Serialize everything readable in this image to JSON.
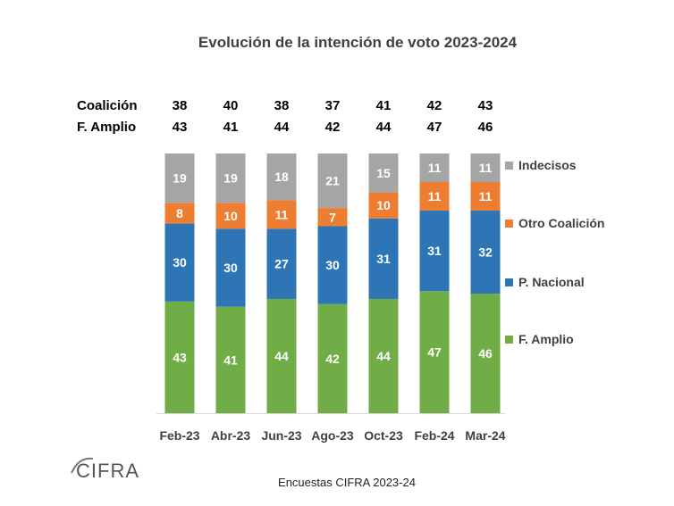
{
  "chart_data": {
    "type": "bar",
    "stacked": true,
    "title": "Evolución de la intención de voto 2023-2024",
    "categories": [
      "Feb-23",
      "Abr-23",
      "Jun-23",
      "Ago-23",
      "Oct-23",
      "Feb-24",
      "Mar-24"
    ],
    "series": [
      {
        "name": "F. Amplio",
        "color": "#70ad47",
        "values": [
          43,
          41,
          44,
          42,
          44,
          47,
          46
        ]
      },
      {
        "name": "P. Nacional",
        "color": "#2e75b6",
        "values": [
          30,
          30,
          27,
          30,
          31,
          31,
          32
        ]
      },
      {
        "name": "Otro Coalición",
        "color": "#ed7d31",
        "values": [
          8,
          10,
          11,
          7,
          10,
          11,
          11
        ]
      },
      {
        "name": "Indecisos",
        "color": "#a5a5a5",
        "values": [
          19,
          19,
          18,
          21,
          15,
          11,
          11
        ]
      }
    ],
    "summary_rows": [
      {
        "label": "Coalición",
        "values": [
          38,
          40,
          38,
          37,
          41,
          42,
          43
        ]
      },
      {
        "label": "F. Amplio",
        "values": [
          43,
          41,
          44,
          42,
          44,
          47,
          46
        ]
      }
    ],
    "legend_position": "right",
    "grid": false,
    "ylim": [
      0,
      100
    ]
  },
  "source_note": "Encuestas CIFRA 2023-24",
  "logo_text": "CIFRA"
}
